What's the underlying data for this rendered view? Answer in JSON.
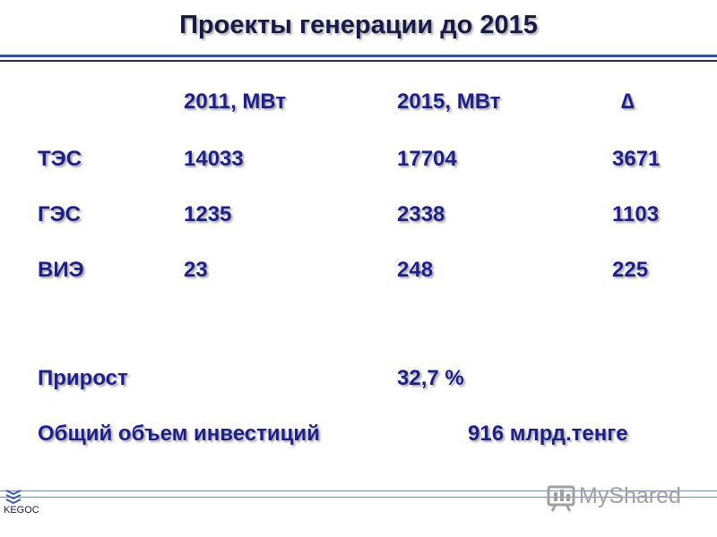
{
  "slide": {
    "title": "Проекты генерации до 2015"
  },
  "table": {
    "headers": [
      "2011, МВт",
      "2015, МВт",
      "∆"
    ],
    "rows": [
      {
        "label": "ТЭС",
        "v2011": "14033",
        "v2015": "17704",
        "delta": "3671"
      },
      {
        "label": "ГЭС",
        "v2011": "1235",
        "v2015": "2338",
        "delta": "1103"
      },
      {
        "label": "ВИЭ",
        "v2011": "23",
        "v2015": "248",
        "delta": "225"
      }
    ]
  },
  "summary": {
    "growth_label": "Прирост",
    "growth_value": "32,7 %",
    "investment_label": "Общий объем инвестиций",
    "investment_value": "916 млрд.тенге"
  },
  "footer": {
    "logo_text": "KEGOC",
    "watermark_text": "MyShared",
    "watermark_icon": "presentation-board-icon"
  },
  "colors": {
    "text": "#1e1e8c",
    "title": "#1a1a4a",
    "rule": "#2f4fc8"
  }
}
